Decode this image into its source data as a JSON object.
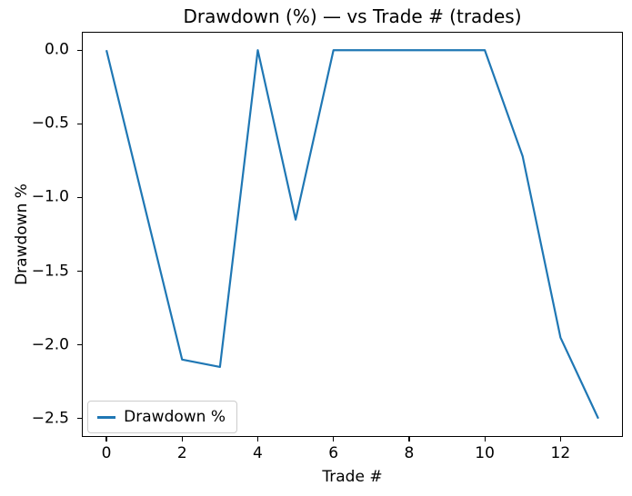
{
  "chart_data": {
    "type": "line",
    "title": "Drawdown (%) — vs Trade # (trades)",
    "xlabel": "Trade #",
    "ylabel": "Drawdown %",
    "x": [
      0,
      1,
      2,
      3,
      4,
      5,
      6,
      7,
      8,
      9,
      10,
      11,
      12,
      13
    ],
    "series": [
      {
        "name": "Drawdown %",
        "color": "#1f77b4",
        "values": [
          0.0,
          -1.05,
          -2.1,
          -2.15,
          0.0,
          -1.15,
          0.0,
          0.0,
          0.0,
          0.0,
          0.0,
          -0.72,
          -1.95,
          -2.5
        ]
      }
    ],
    "xticks": [
      0,
      2,
      4,
      6,
      8,
      10,
      12
    ],
    "yticks": [
      0.0,
      -0.5,
      -1.0,
      -1.5,
      -2.0,
      -2.5
    ],
    "xlim": [
      -0.65,
      13.65
    ],
    "ylim": [
      -2.625,
      0.125
    ],
    "grid": false,
    "legend_position": "lower left",
    "colors": {
      "line": "#1f77b4",
      "spine": "#000000",
      "legend_border": "#cccccc",
      "background": "#ffffff"
    }
  }
}
